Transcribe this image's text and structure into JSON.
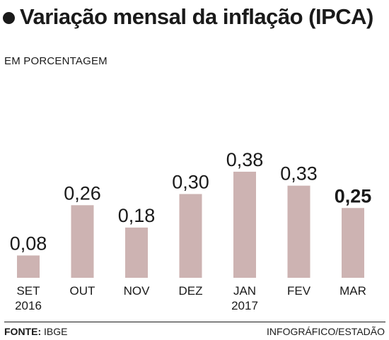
{
  "header": {
    "title": "Variação mensal da inflação (IPCA)",
    "subtitle": "EM PORCENTAGEM"
  },
  "footer": {
    "source_label": "FONTE:",
    "source_value": "IBGE",
    "credit": "INFOGRÁFICO/ESTADÃO"
  },
  "colors": {
    "bar": "#cdb3b2",
    "text": "#1a1a1a"
  },
  "chart_data": {
    "type": "bar",
    "title": "Variação mensal da inflação (IPCA)",
    "subtitle": "EM PORCENTAGEM",
    "categories": [
      [
        "SET",
        "2016"
      ],
      [
        "OUT"
      ],
      [
        "NOV"
      ],
      [
        "DEZ"
      ],
      [
        "JAN",
        "2017"
      ],
      [
        "FEV"
      ],
      [
        "MAR"
      ]
    ],
    "values": [
      0.08,
      0.26,
      0.18,
      0.3,
      0.38,
      0.33,
      0.25
    ],
    "value_labels": [
      "0,08",
      "0,26",
      "0,18",
      "0,30",
      "0,38",
      "0,33",
      "0,25"
    ],
    "highlight_index": 6,
    "ylim": [
      0,
      0.4
    ],
    "grid": false,
    "legend": "none"
  }
}
